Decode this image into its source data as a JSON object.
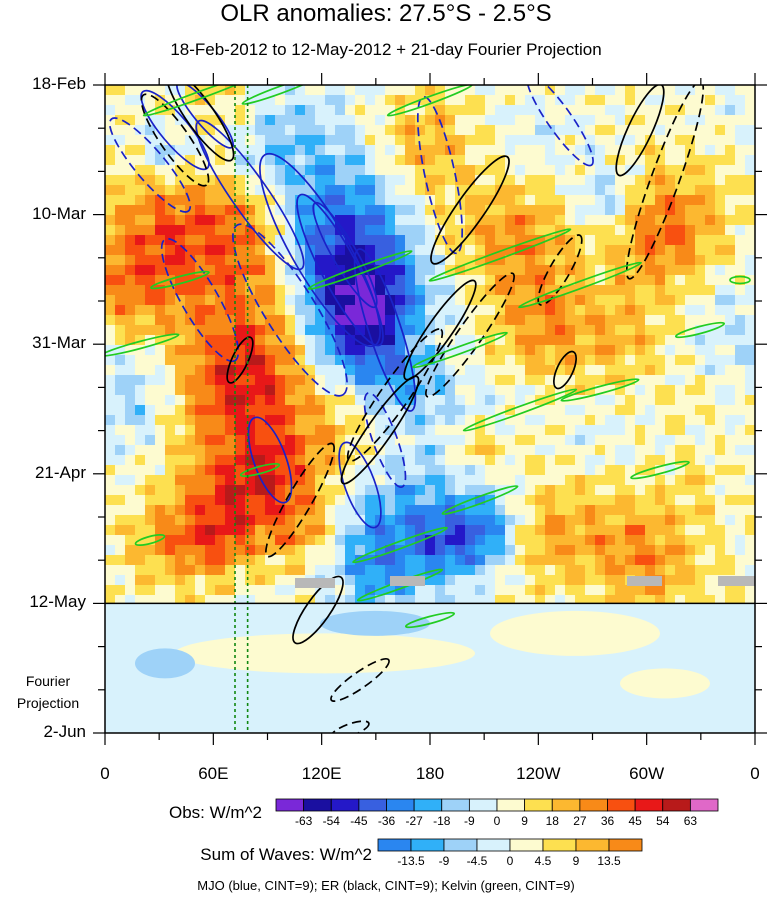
{
  "title": "OLR anomalies: 27.5°S - 2.5°S",
  "subtitle": "18-Feb-2012 to 12-May-2012 + 21-day Fourier Projection",
  "projection_label": [
    "Fourier",
    "Projection"
  ],
  "footer": "MJO (blue, CINT=9); ER (black, CINT=9); Kelvin (green, CINT=9)",
  "chart_data": {
    "type": "heatmap",
    "x_axis": {
      "ticks": [
        {
          "lon": 0,
          "label": "0"
        },
        {
          "lon": 60,
          "label": "60E"
        },
        {
          "lon": 120,
          "label": "120E"
        },
        {
          "lon": 180,
          "label": "180"
        },
        {
          "lon": 240,
          "label": "120W"
        },
        {
          "lon": 300,
          "label": "60W"
        },
        {
          "lon": 360,
          "label": "0"
        }
      ],
      "range": [
        0,
        360
      ]
    },
    "y_axis": {
      "ticks": [
        {
          "day": 0,
          "label": "18-Feb"
        },
        {
          "day": 21,
          "label": "10-Mar"
        },
        {
          "day": 42,
          "label": "31-Mar"
        },
        {
          "day": 63,
          "label": "21-Apr"
        },
        {
          "day": 84,
          "label": "12-May"
        },
        {
          "day": 105,
          "label": "2-Jun"
        }
      ],
      "range": [
        0,
        105
      ],
      "observed_end_day": 84
    },
    "obs_colorbar": {
      "title": "Obs: W/m^2",
      "levels": [
        "-63",
        "-54",
        "-45",
        "-36",
        "-27",
        "-18",
        "-9",
        "0",
        "9",
        "18",
        "27",
        "36",
        "45",
        "54",
        "63"
      ],
      "colors": [
        "#7a28d8",
        "#1a0fa0",
        "#2418c8",
        "#3860e0",
        "#2a86f0",
        "#30b0f8",
        "#9ed2f8",
        "#d8f2fc",
        "#fdfbd0",
        "#fde050",
        "#fcb830",
        "#f88a18",
        "#f85010",
        "#e81818",
        "#b81a1a",
        "#e068c8"
      ]
    },
    "wave_colorbar": {
      "title": "Sum of Waves: W/m^2",
      "levels": [
        "-13.5",
        "-9",
        "-4.5",
        "0",
        "4.5",
        "9",
        "13.5"
      ],
      "colors": [
        "#2a86f0",
        "#30b0f8",
        "#9ed2f8",
        "#d8f2fc",
        "#fdfbd0",
        "#fde050",
        "#fcb830",
        "#f88a18"
      ]
    },
    "dotted_lines_lon": [
      72,
      79
    ],
    "series": [
      {
        "name": "MJO",
        "color": "#1a22c8"
      },
      {
        "name": "ER",
        "color": "#000000"
      },
      {
        "name": "Kelvin",
        "color": "#22cc22"
      }
    ]
  }
}
